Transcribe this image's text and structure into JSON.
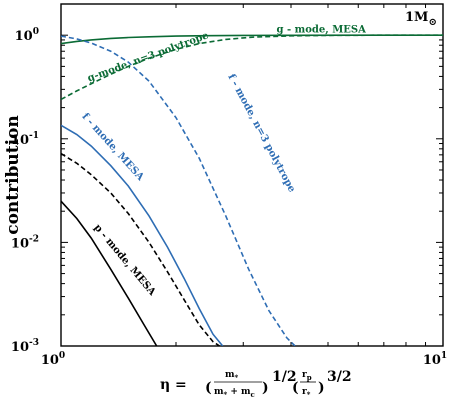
{
  "chart_data": {
    "type": "line",
    "title": "",
    "corner_label": "1M",
    "corner_label_sub": "⊙",
    "ylabel": "contribution",
    "xlabel": {
      "prefix": "η = ",
      "frac1_num": "m",
      "frac1_num_sub": "*",
      "frac1_den": "m",
      "frac1_den_sub": "*",
      "frac1_den_plus": " + m",
      "frac1_den_sub2": "c",
      "exp1": "1/2",
      "frac2_num": "r",
      "frac2_num_sub": "p",
      "frac2_den": "r",
      "frac2_den_sub": "*",
      "exp2": "3/2"
    },
    "x_scale": "log",
    "y_scale": "log",
    "xlim": [
      1,
      10
    ],
    "ylim": [
      0.001,
      2
    ],
    "x_ticks": [
      {
        "value": 1,
        "base": "10",
        "exp": "0"
      },
      {
        "value": 10,
        "base": "10",
        "exp": "1"
      }
    ],
    "y_ticks": [
      {
        "value": 1,
        "base": "10",
        "exp": "0"
      },
      {
        "value": 0.1,
        "base": "10",
        "exp": "-1"
      },
      {
        "value": 0.01,
        "base": "10",
        "exp": "-2"
      },
      {
        "value": 0.001,
        "base": "10",
        "exp": "-3"
      }
    ],
    "grid": false,
    "series": [
      {
        "name": "g - mode, MESA",
        "color": "#0b6b35",
        "dash": "solid",
        "x": [
          1.0,
          1.1,
          1.2,
          1.35,
          1.5,
          1.7,
          2.0,
          2.4,
          3.0,
          4.0,
          6.0,
          10.0
        ],
        "y": [
          0.83,
          0.87,
          0.9,
          0.93,
          0.95,
          0.965,
          0.98,
          0.99,
          0.995,
          0.998,
          1.0,
          1.0
        ]
      },
      {
        "name": "g-mode, n=3 polytrope",
        "color": "#0b6b35",
        "dash": "dashed",
        "x": [
          1.0,
          1.1,
          1.2,
          1.35,
          1.5,
          1.7,
          2.0,
          2.3,
          2.7,
          3.2,
          4.0,
          5.0,
          7.0,
          10.0
        ],
        "y": [
          0.24,
          0.29,
          0.34,
          0.42,
          0.5,
          0.6,
          0.73,
          0.83,
          0.91,
          0.96,
          0.985,
          0.995,
          1.0,
          1.0
        ]
      },
      {
        "name": "f - mode, n=3 polytrope",
        "color": "#2e6db4",
        "dash": "dashed",
        "x": [
          1.0,
          1.1,
          1.2,
          1.35,
          1.5,
          1.7,
          2.0,
          2.3,
          2.7,
          3.1,
          3.5,
          3.9,
          4.1
        ],
        "y": [
          0.98,
          0.92,
          0.84,
          0.7,
          0.55,
          0.36,
          0.16,
          0.065,
          0.018,
          0.0055,
          0.0022,
          0.0012,
          0.001
        ]
      },
      {
        "name": "f - mode, MESA",
        "color": "#2e6db4",
        "dash": "solid",
        "x": [
          1.0,
          1.1,
          1.2,
          1.35,
          1.5,
          1.7,
          1.9,
          2.1,
          2.3,
          2.5,
          2.65
        ],
        "y": [
          0.135,
          0.11,
          0.085,
          0.055,
          0.035,
          0.018,
          0.009,
          0.0045,
          0.0023,
          0.0013,
          0.001
        ]
      },
      {
        "name": "",
        "color": "#000000",
        "dash": "dashed",
        "x": [
          1.0,
          1.1,
          1.2,
          1.35,
          1.5,
          1.7,
          1.9,
          2.1,
          2.3,
          2.5,
          2.6
        ],
        "y": [
          0.072,
          0.058,
          0.045,
          0.03,
          0.019,
          0.01,
          0.0052,
          0.0028,
          0.0016,
          0.0011,
          0.001
        ]
      },
      {
        "name": "p - mode, MESA",
        "color": "#000000",
        "dash": "solid",
        "x": [
          1.0,
          1.1,
          1.2,
          1.35,
          1.5,
          1.65,
          1.78
        ],
        "y": [
          0.025,
          0.017,
          0.011,
          0.0055,
          0.0029,
          0.0016,
          0.001
        ]
      }
    ],
    "annotations": [
      {
        "text": "g - mode, MESA",
        "color": "#0b6b35",
        "x": 4.8,
        "y": 1.06,
        "rotate": 0
      },
      {
        "text": "g-mode, n=3 polytrope",
        "color": "#0b6b35",
        "x": 1.7,
        "y": 0.58,
        "rotate": -20
      },
      {
        "text": "f - mode, n=3 polytrope",
        "color": "#2e6db4",
        "x": 3.3,
        "y": 0.11,
        "rotate": 62
      },
      {
        "text": "f - mode, MESA",
        "color": "#2e6db4",
        "x": 1.35,
        "y": 0.08,
        "rotate": 48
      },
      {
        "text": "p - mode, MESA",
        "color": "#000000",
        "x": 1.45,
        "y": 0.0065,
        "rotate": 50
      }
    ]
  }
}
